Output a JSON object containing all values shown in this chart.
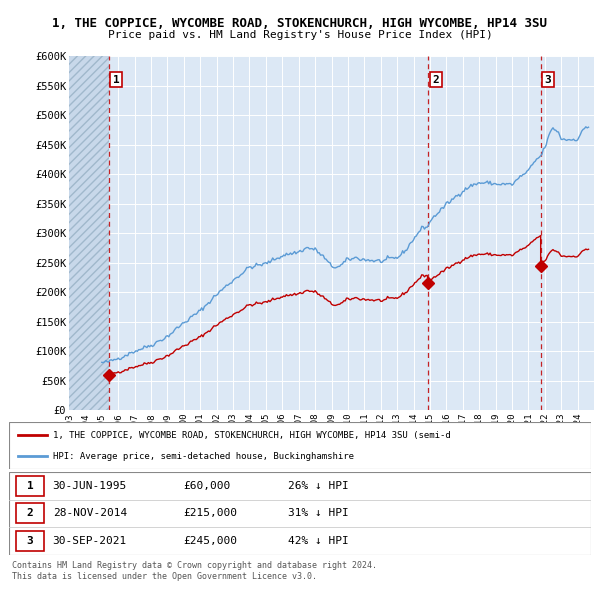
{
  "title_line1": "1, THE COPPICE, WYCOMBE ROAD, STOKENCHURCH, HIGH WYCOMBE, HP14 3SU",
  "title_line2": "Price paid vs. HM Land Registry's House Price Index (HPI)",
  "ylim": [
    0,
    600000
  ],
  "yticks": [
    0,
    50000,
    100000,
    150000,
    200000,
    250000,
    300000,
    350000,
    400000,
    450000,
    500000,
    550000,
    600000
  ],
  "ytick_labels": [
    "£0",
    "£50K",
    "£100K",
    "£150K",
    "£200K",
    "£250K",
    "£300K",
    "£350K",
    "£400K",
    "£450K",
    "£500K",
    "£550K",
    "£600K"
  ],
  "xlim_start": 1993.0,
  "xlim_end": 2025.0,
  "hatch_end": 1995.42,
  "sales": [
    {
      "num": 1,
      "date_num": 1995.42,
      "price": 60000,
      "label": "30-JUN-1995",
      "price_str": "£60,000",
      "hpi_str": "26% ↓ HPI"
    },
    {
      "num": 2,
      "date_num": 2014.91,
      "price": 215000,
      "label": "28-NOV-2014",
      "price_str": "£215,000",
      "hpi_str": "31% ↓ HPI"
    },
    {
      "num": 3,
      "date_num": 2021.75,
      "price": 245000,
      "label": "30-SEP-2021",
      "price_str": "£245,000",
      "hpi_str": "42% ↓ HPI"
    }
  ],
  "hpi_color": "#5b9bd5",
  "sale_color": "#c00000",
  "legend_label_sale": "1, THE COPPICE, WYCOMBE ROAD, STOKENCHURCH, HIGH WYCOMBE, HP14 3SU (semi-d",
  "legend_label_hpi": "HPI: Average price, semi-detached house, Buckinghamshire",
  "footer1": "Contains HM Land Registry data © Crown copyright and database right 2024.",
  "footer2": "This data is licensed under the Open Government Licence v3.0."
}
